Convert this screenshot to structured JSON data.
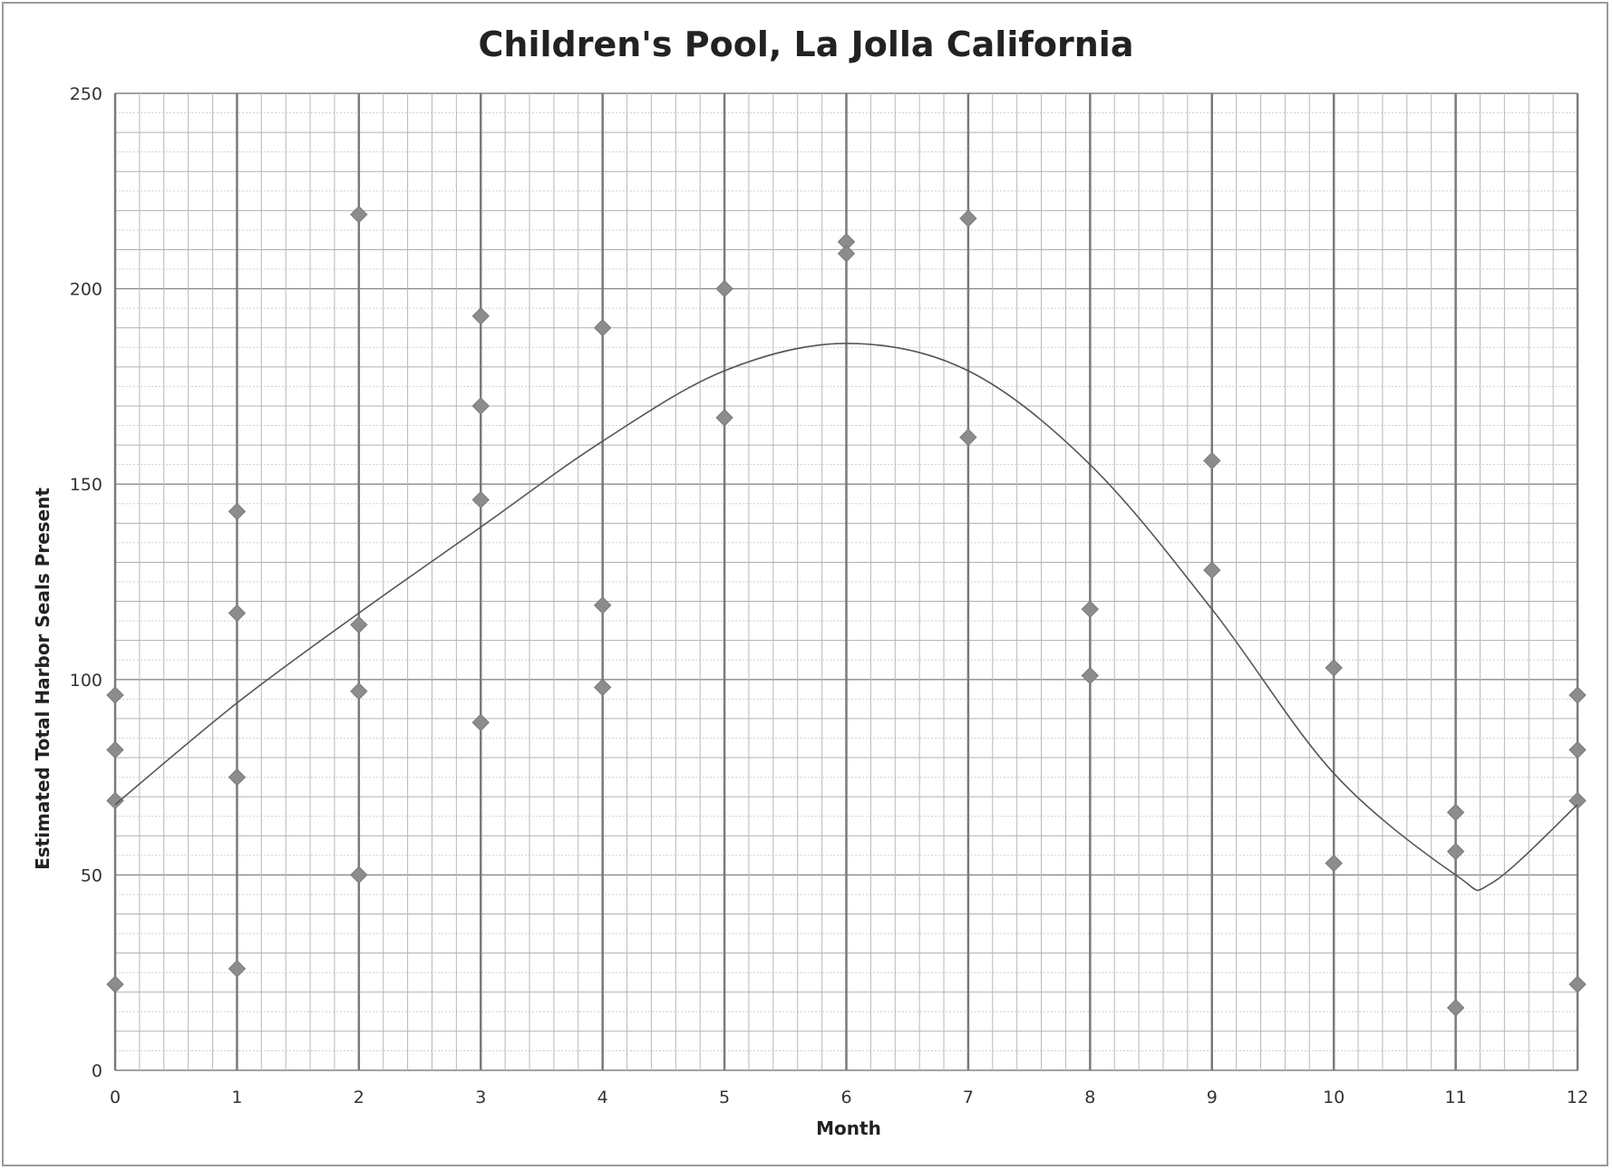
{
  "chart_data": {
    "type": "scatter",
    "title": "Children's Pool, La Jolla California",
    "xlabel": "Month",
    "ylabel": "Estimated Total Harbor Seals Present",
    "xlim": [
      0,
      12
    ],
    "ylim": [
      0,
      250
    ],
    "x_ticks": [
      "0",
      "1",
      "2",
      "3",
      "4",
      "5",
      "6",
      "7",
      "8",
      "9",
      "10",
      "11",
      "12"
    ],
    "y_ticks": [
      "0",
      "50",
      "100",
      "150",
      "200",
      "250"
    ],
    "grid": true,
    "legend": "none",
    "colors": {
      "points": "#8c8c8c",
      "trendline": "#555555",
      "grid": "#a0a0a0"
    },
    "series": [
      {
        "type": "scatter",
        "points": [
          [
            0,
            96
          ],
          [
            0,
            82
          ],
          [
            0,
            69
          ],
          [
            0,
            22
          ],
          [
            1,
            143
          ],
          [
            1,
            117
          ],
          [
            1,
            75
          ],
          [
            1,
            26
          ],
          [
            2,
            219
          ],
          [
            2,
            114
          ],
          [
            2,
            97
          ],
          [
            2,
            50
          ],
          [
            3,
            193
          ],
          [
            3,
            170
          ],
          [
            3,
            146
          ],
          [
            3,
            89
          ],
          [
            4,
            190
          ],
          [
            4,
            119
          ],
          [
            4,
            98
          ],
          [
            5,
            200
          ],
          [
            5,
            167
          ],
          [
            6,
            212
          ],
          [
            6,
            209
          ],
          [
            7,
            218
          ],
          [
            7,
            162
          ],
          [
            8,
            118
          ],
          [
            8,
            101
          ],
          [
            9,
            156
          ],
          [
            9,
            128
          ],
          [
            10,
            103
          ],
          [
            10,
            53
          ],
          [
            11,
            66
          ],
          [
            11,
            56
          ],
          [
            11,
            16
          ],
          [
            12,
            96
          ],
          [
            12,
            82
          ],
          [
            12,
            69
          ],
          [
            12,
            22
          ]
        ]
      },
      {
        "type": "line",
        "smooth": true,
        "points": [
          [
            0,
            68
          ],
          [
            1,
            94
          ],
          [
            2,
            117
          ],
          [
            3,
            139
          ],
          [
            4,
            161
          ],
          [
            5,
            179
          ],
          [
            6,
            186
          ],
          [
            7,
            179
          ],
          [
            8,
            155
          ],
          [
            9,
            118
          ],
          [
            10,
            76
          ],
          [
            11,
            50
          ],
          [
            11.3,
            48
          ],
          [
            12,
            68
          ]
        ]
      }
    ]
  }
}
